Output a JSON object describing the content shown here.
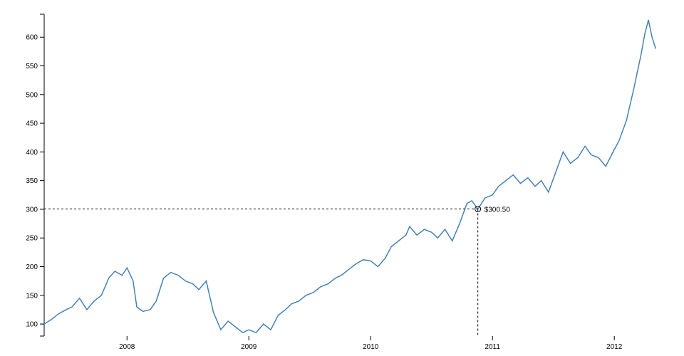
{
  "chart_data": {
    "type": "line",
    "x": [
      2007.32,
      2007.38,
      2007.44,
      2007.5,
      2007.55,
      2007.61,
      2007.67,
      2007.73,
      2007.79,
      2007.85,
      2007.9,
      2007.96,
      2008.0,
      2008.05,
      2008.08,
      2008.13,
      2008.19,
      2008.24,
      2008.3,
      2008.36,
      2008.42,
      2008.48,
      2008.54,
      2008.59,
      2008.65,
      2008.71,
      2008.77,
      2008.83,
      2008.89,
      2008.95,
      2009.0,
      2009.06,
      2009.12,
      2009.18,
      2009.24,
      2009.3,
      2009.35,
      2009.41,
      2009.47,
      2009.53,
      2009.59,
      2009.65,
      2009.71,
      2009.76,
      2009.82,
      2009.88,
      2009.94,
      2010.0,
      2010.06,
      2010.12,
      2010.17,
      2010.23,
      2010.29,
      2010.32,
      2010.38,
      2010.44,
      2010.5,
      2010.55,
      2010.61,
      2010.67,
      2010.73,
      2010.79,
      2010.83,
      2010.88,
      2010.94,
      2011.0,
      2011.05,
      2011.11,
      2011.17,
      2011.23,
      2011.29,
      2011.35,
      2011.4,
      2011.46,
      2011.52,
      2011.58,
      2011.64,
      2011.7,
      2011.76,
      2011.81,
      2011.87,
      2011.93,
      2011.99,
      2012.04,
      2012.1,
      2012.16,
      2012.19,
      2012.22,
      2012.25,
      2012.28,
      2012.31,
      2012.34
    ],
    "series": [
      {
        "color": "#4682b4",
        "values": [
          100,
          108,
          118,
          125,
          130,
          145,
          125,
          140,
          150,
          180,
          192,
          185,
          198,
          175,
          130,
          122,
          125,
          140,
          180,
          190,
          185,
          175,
          170,
          160,
          175,
          120,
          90,
          105,
          95,
          85,
          90,
          85,
          100,
          90,
          115,
          125,
          135,
          140,
          150,
          155,
          165,
          170,
          180,
          185,
          195,
          205,
          212,
          210,
          200,
          215,
          235,
          245,
          255,
          270,
          255,
          265,
          260,
          250,
          265,
          245,
          275,
          310,
          315,
          300.5,
          320,
          325,
          340,
          350,
          360,
          345,
          355,
          340,
          350,
          330,
          365,
          400,
          380,
          390,
          410,
          395,
          390,
          375,
          400,
          420,
          455,
          510,
          540,
          570,
          605,
          630,
          600,
          580
        ]
      }
    ],
    "xlim": [
      2007.32,
      2012.35
    ],
    "ylim": [
      79,
      640
    ],
    "xticks": [
      2008,
      2009,
      2010,
      2011,
      2012
    ],
    "yticks": [
      100,
      150,
      200,
      250,
      300,
      350,
      400,
      450,
      500,
      550,
      600
    ],
    "focus": {
      "x": 2010.88,
      "value": 300.5,
      "label": "$300.50"
    }
  }
}
